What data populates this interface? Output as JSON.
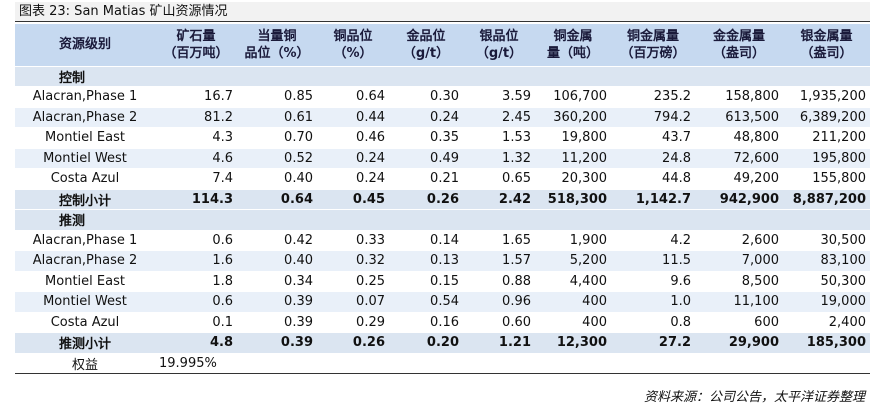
{
  "title": "图表 23: San Matias 矿山资源情况",
  "table": {
    "header": [
      [
        "资源级别"
      ],
      [
        "矿石量",
        "（百万吨）"
      ],
      [
        "当量铜",
        "品位（%）"
      ],
      [
        "铜品位",
        "（%）"
      ],
      [
        "金品位",
        "（g/t）"
      ],
      [
        "银品位",
        "（g/t）"
      ],
      [
        "铜金属",
        "量（吨）"
      ],
      [
        "铜金属量",
        "（百万磅）"
      ],
      [
        "金金属量",
        "（盎司）"
      ],
      [
        "银金属量",
        "（盎司）"
      ]
    ],
    "sections": [
      {
        "label": "控制",
        "rows": [
          [
            "Alacran,Phase 1",
            "16.7",
            "0.85",
            "0.64",
            "0.30",
            "3.59",
            "106,700",
            "235.2",
            "158,800",
            "1,935,200"
          ],
          [
            "Alacran,Phase 2",
            "81.2",
            "0.61",
            "0.44",
            "0.24",
            "2.45",
            "360,200",
            "794.2",
            "613,500",
            "6,389,200"
          ],
          [
            "Montiel East",
            "4.3",
            "0.70",
            "0.46",
            "0.35",
            "1.53",
            "19,800",
            "43.7",
            "48,800",
            "211,200"
          ],
          [
            "Montiel West",
            "4.6",
            "0.52",
            "0.24",
            "0.49",
            "1.32",
            "11,200",
            "24.8",
            "72,600",
            "195,800"
          ],
          [
            "Costa Azul",
            "7.4",
            "0.40",
            "0.24",
            "0.21",
            "0.65",
            "20,300",
            "44.8",
            "49,200",
            "155,800"
          ]
        ],
        "subtotal": [
          "控制小计",
          "114.3",
          "0.64",
          "0.45",
          "0.26",
          "2.42",
          "518,300",
          "1,142.7",
          "942,900",
          "8,887,200"
        ]
      },
      {
        "label": "推测",
        "rows": [
          [
            "Alacran,Phase 1",
            "0.6",
            "0.42",
            "0.33",
            "0.14",
            "1.65",
            "1,900",
            "4.2",
            "2,600",
            "30,500"
          ],
          [
            "Alacran,Phase 2",
            "1.6",
            "0.40",
            "0.32",
            "0.13",
            "1.57",
            "5,200",
            "11.5",
            "7,000",
            "83,100"
          ],
          [
            "Montiel East",
            "1.8",
            "0.34",
            "0.25",
            "0.15",
            "0.88",
            "4,400",
            "9.6",
            "8,500",
            "50,300"
          ],
          [
            "Montiel West",
            "0.6",
            "0.39",
            "0.07",
            "0.54",
            "0.96",
            "400",
            "1.0",
            "11,100",
            "19,000"
          ],
          [
            "Costa Azul",
            "0.1",
            "0.39",
            "0.29",
            "0.16",
            "0.60",
            "400",
            "0.8",
            "600",
            "2,400"
          ]
        ],
        "subtotal": [
          "推测小计",
          "4.8",
          "0.39",
          "0.26",
          "0.20",
          "1.21",
          "12,300",
          "27.2",
          "29,900",
          "185,300"
        ]
      }
    ],
    "equity": [
      "权益",
      "19.995%"
    ]
  },
  "source": "资料来源：公司公告，太平洋证券整理"
}
